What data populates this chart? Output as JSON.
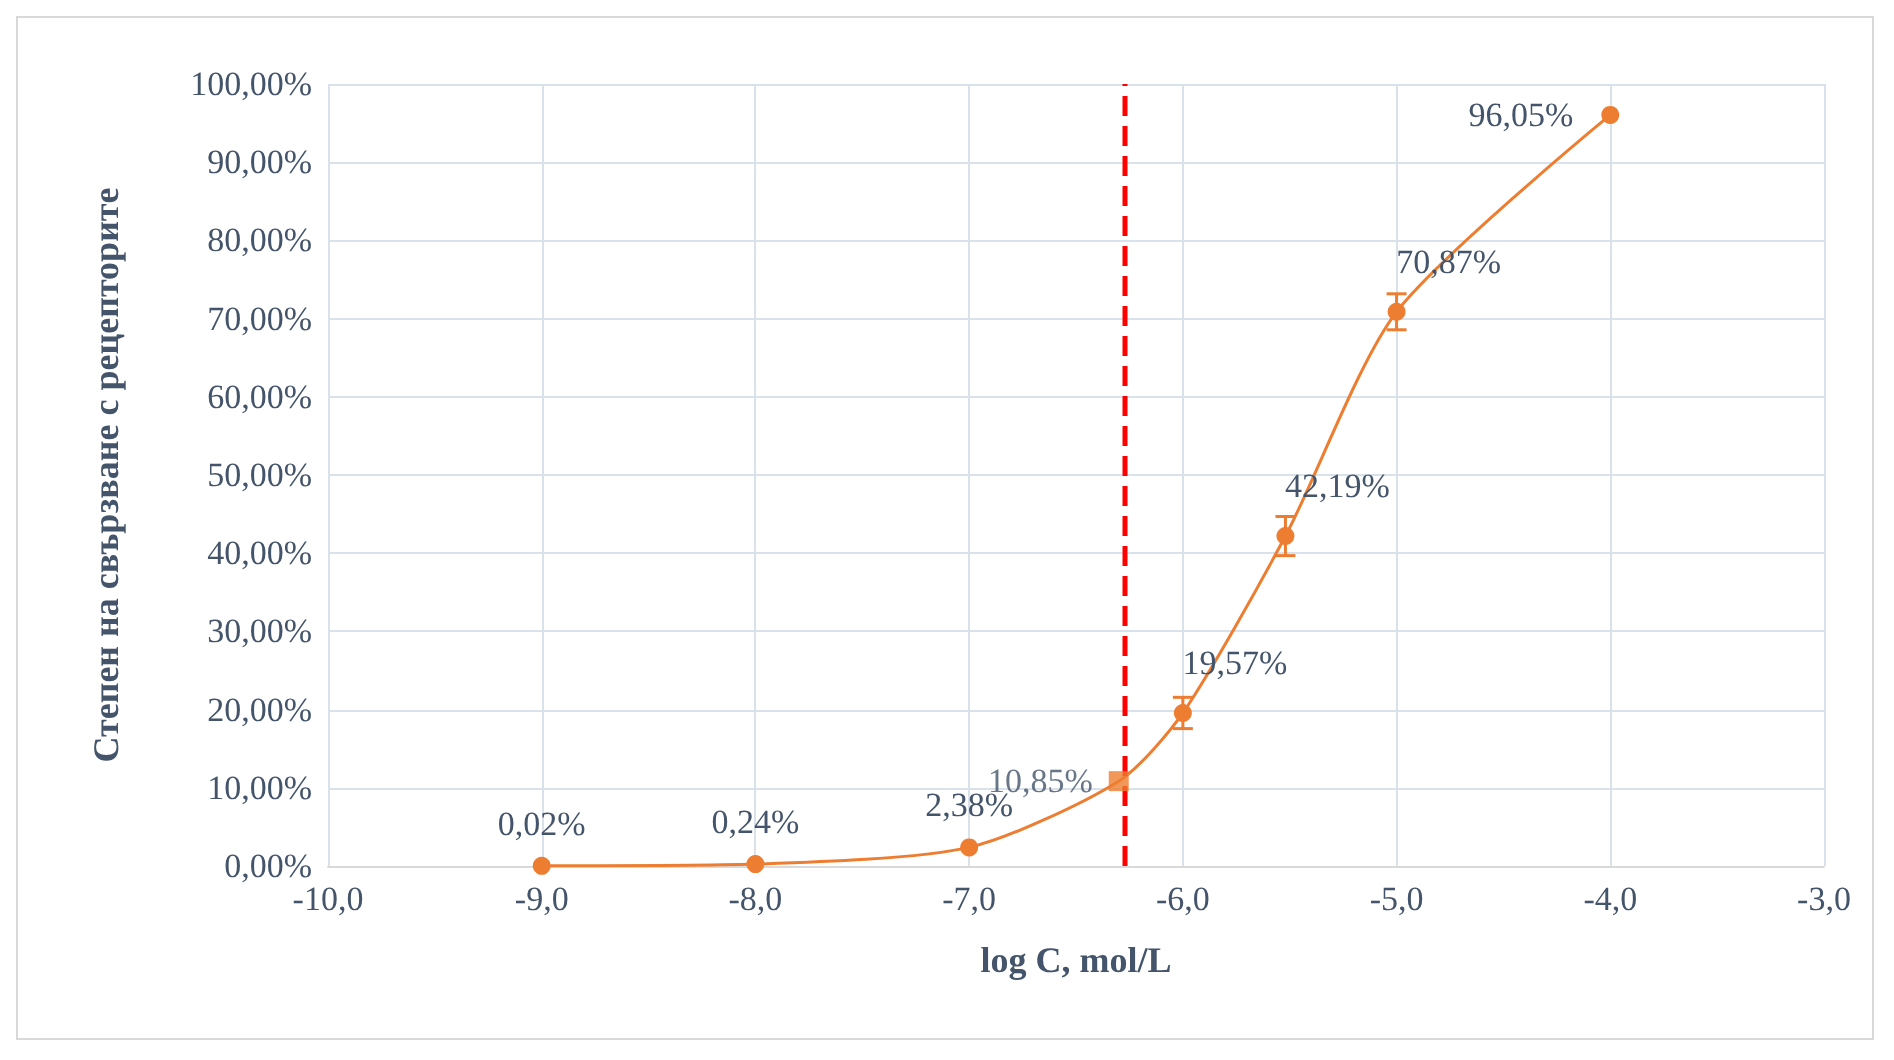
{
  "chart_data": {
    "type": "line",
    "xlabel": "log C, mol/L",
    "ylabel": "Степен на свързване с рецепторите",
    "xlim": [
      -10,
      -3
    ],
    "xticks": [
      {
        "value": -10,
        "label": "-10,0"
      },
      {
        "value": -9,
        "label": "-9,0"
      },
      {
        "value": -8,
        "label": "-8,0"
      },
      {
        "value": -7,
        "label": "-7,0"
      },
      {
        "value": -6,
        "label": "-6,0"
      },
      {
        "value": -5,
        "label": "-5,0"
      },
      {
        "value": -4,
        "label": "-4,0"
      },
      {
        "value": -3,
        "label": "-3,0"
      }
    ],
    "ylim": [
      0,
      100
    ],
    "yticks": [
      {
        "value": 0,
        "label": "0,00%"
      },
      {
        "value": 10,
        "label": "10,00%"
      },
      {
        "value": 20,
        "label": "20,00%"
      },
      {
        "value": 30,
        "label": "30,00%"
      },
      {
        "value": 40,
        "label": "40,00%"
      },
      {
        "value": 50,
        "label": "50,00%"
      },
      {
        "value": 60,
        "label": "60,00%"
      },
      {
        "value": 70,
        "label": "70,00%"
      },
      {
        "value": 80,
        "label": "80,00%"
      },
      {
        "value": 90,
        "label": "90,00%"
      },
      {
        "value": 100,
        "label": "100,00%"
      }
    ],
    "series": [
      {
        "color": "#ed7d31",
        "marker": "circle",
        "x": [
          -9,
          -8,
          -7,
          -6.3,
          -6,
          -5.52,
          -5,
          -4
        ],
        "values": [
          0.02,
          0.24,
          2.38,
          10.85,
          19.57,
          42.19,
          70.87,
          96.05
        ],
        "errors": [
          null,
          null,
          null,
          null,
          2,
          2.5,
          2.3,
          null
        ],
        "value_labels": [
          "0,02%",
          "0,24%",
          "2,38%",
          null,
          "19,57%",
          "42,19%",
          "70,87%",
          "96,05%"
        ]
      },
      {
        "type": "scatter",
        "color": "#ed7d31",
        "marker": "square",
        "x": [
          -6.3
        ],
        "values": [
          10.85
        ],
        "value_labels": [
          "10,85%"
        ]
      }
    ],
    "ref_lines": [
      {
        "axis": "x",
        "value": -6.27,
        "color": "#ff0000",
        "line_style": "dashed"
      }
    ],
    "grid": true
  }
}
